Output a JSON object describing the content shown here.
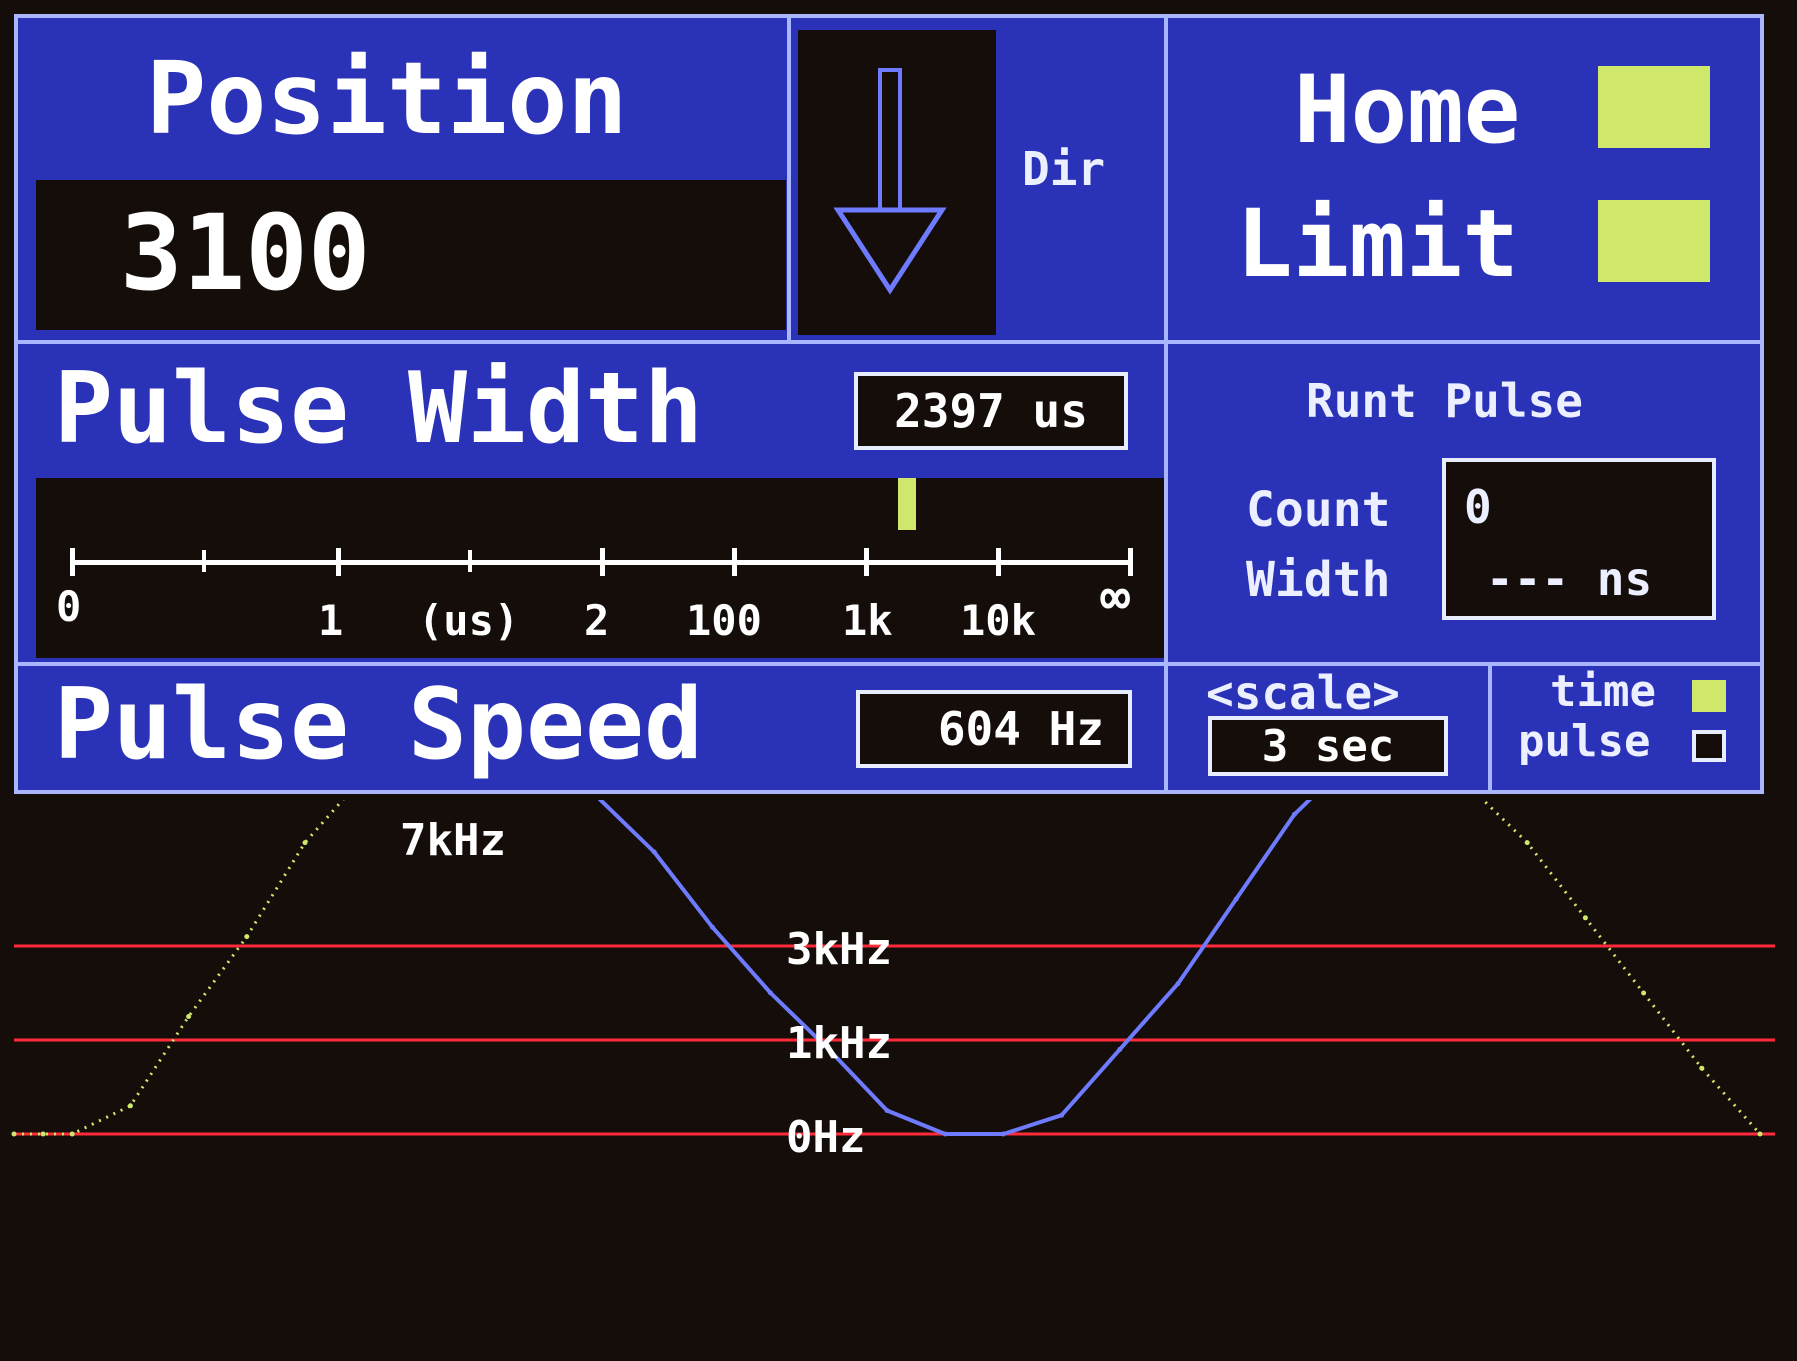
{
  "position": {
    "label": "Position",
    "value": "3100"
  },
  "direction": {
    "label": "Dir",
    "icon": "down-arrow-icon"
  },
  "indicators": [
    {
      "label": "Home",
      "state": "on",
      "color": "#cfe86b"
    },
    {
      "label": "Limit",
      "state": "on",
      "color": "#cfe86b"
    }
  ],
  "pulse_width": {
    "label": "Pulse Width",
    "value": "2397 us",
    "scale_labels": [
      "0",
      "1",
      "(us)",
      "2",
      "100",
      "1k",
      "10k",
      "∞"
    ],
    "marker_color": "#cfe86b"
  },
  "runt_pulse": {
    "title": "Runt Pulse",
    "count_label": "Count",
    "width_label": "Width",
    "count_value": "0",
    "width_value": "--- ns"
  },
  "pulse_speed": {
    "label": "Pulse Speed",
    "value": "604 Hz"
  },
  "scale": {
    "label": "<scale>",
    "value": "3 sec"
  },
  "mode": {
    "time_label": "time",
    "pulse_label": "pulse",
    "time_selected": true,
    "pulse_selected": false,
    "selected_color": "#cfe86b"
  },
  "chart_data": {
    "type": "line",
    "title": "",
    "reference_lines": [
      {
        "label": "7kHz",
        "value": 7000
      },
      {
        "label": "3kHz",
        "value": 3000
      },
      {
        "label": "1kHz",
        "value": 1000
      },
      {
        "label": "0Hz",
        "value": 0
      }
    ],
    "peak_label": "7kHz",
    "y_scale": "nonlinear (0Hz, 1kHz, 3kHz, 7kHz reference lines)",
    "x_range_sec": [
      0,
      3
    ],
    "series": [
      {
        "color": "#cfe86b",
        "style": "dotted",
        "x": [
          0.0,
          0.05,
          0.1,
          0.2,
          0.3,
          0.4,
          0.5,
          0.6,
          0.7,
          0.75,
          0.8
        ],
        "y": [
          0,
          0,
          0,
          300,
          1500,
          3200,
          5200,
          6600,
          7000,
          7000,
          7000
        ]
      },
      {
        "color": "#6f7bff",
        "style": "solid",
        "x": [
          0.8,
          0.9,
          1.0,
          1.1,
          1.2,
          1.3,
          1.4,
          1.5,
          1.6,
          1.7,
          1.8,
          1.9,
          2.0,
          2.1,
          2.2,
          2.3
        ],
        "y": [
          7000,
          6900,
          6200,
          5000,
          3400,
          2000,
          900,
          250,
          0,
          0,
          200,
          900,
          2200,
          4000,
          5800,
          7000
        ]
      },
      {
        "color": "#cfe86b",
        "style": "dotted",
        "x": [
          2.3,
          2.4,
          2.5,
          2.6,
          2.7,
          2.8,
          2.9,
          3.0
        ],
        "y": [
          7000,
          6900,
          6400,
          5200,
          3600,
          2000,
          700,
          0
        ]
      }
    ]
  }
}
